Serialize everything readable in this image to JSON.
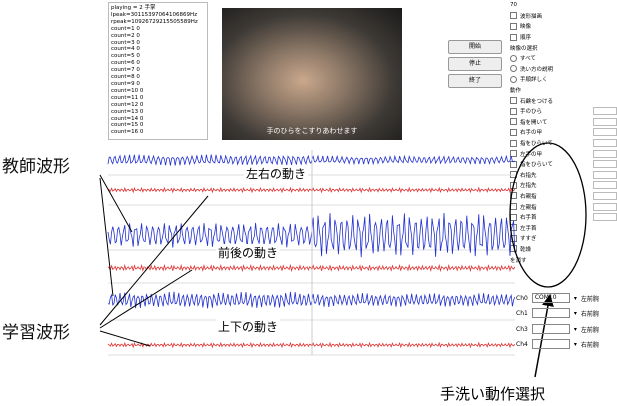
{
  "info_panel": {
    "lines": [
      "playing = 2 手掌",
      "lpeak=30115397064106869Hz",
      "rpeak=10926729215505589Hz",
      "count=1 0",
      "count=2 0",
      "count=3 0",
      "count=4 0",
      "count=5 0",
      "count=6 0",
      "count=7 0",
      "count=8 0",
      "count=9 0",
      "count=10 0",
      "count=11 0",
      "count=12 0",
      "count=13 0",
      "count=14 0",
      "count=15 0",
      "count=16 0"
    ]
  },
  "video": {
    "caption": "手のひらをこすりあわせます"
  },
  "buttons": [
    "開始",
    "停止",
    "終了"
  ],
  "settings": {
    "value": "70",
    "checkboxes": [
      "波形描画",
      "映像",
      "順序"
    ],
    "section_label": "映像の選択",
    "radios": [
      "すべて",
      "洗い方の説明",
      "手順詳しく"
    ],
    "action_label": "動作",
    "actions": [
      "石鹸をつける",
      "手のひら",
      "指を開いて",
      "右手の甲",
      "指をひらいて",
      "左手の甲",
      "指をひらいて",
      "右指先",
      "左指先",
      "右親指",
      "左親指",
      "右手首",
      "左手首",
      "すすぎ",
      "乾燥"
    ],
    "footer": "を消す"
  },
  "channels": [
    {
      "ch": "Ch0",
      "port": "COM10",
      "side": "左前腕"
    },
    {
      "ch": "Ch1",
      "port": "",
      "side": "右前腕"
    },
    {
      "ch": "Ch3",
      "port": "",
      "side": "左前腕"
    },
    {
      "ch": "Ch4",
      "port": "",
      "side": "右前腕"
    }
  ],
  "annotations": {
    "teacher": "教師波形",
    "learner": "学習波形",
    "lr": "左右の動き",
    "fb": "前後の動き",
    "ud": "上下の動き",
    "select": "手洗い動作選択"
  }
}
